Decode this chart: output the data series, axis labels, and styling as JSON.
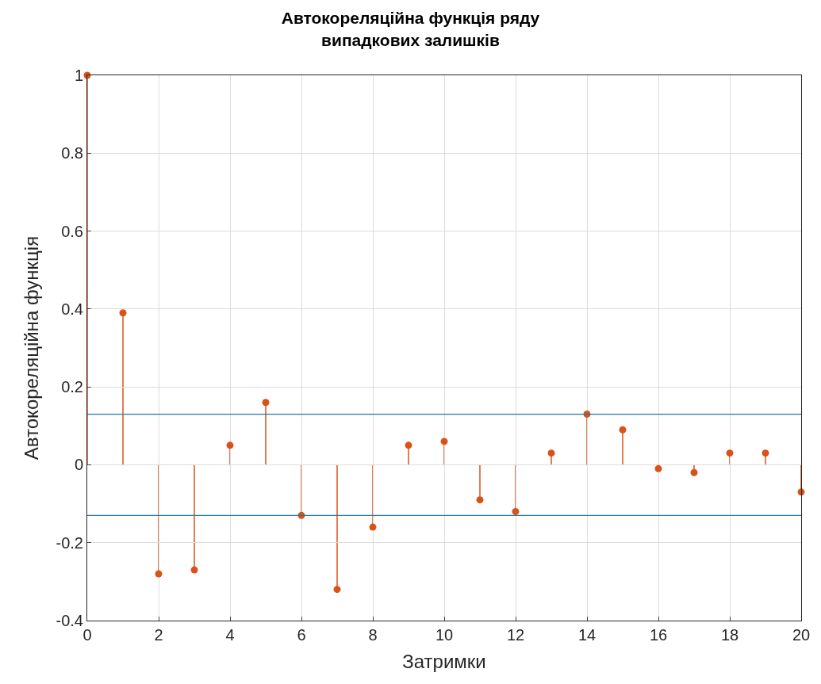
{
  "chart_data": {
    "type": "lollipop",
    "title": "Автокореляційна функція ряду\nвипадкових залишків",
    "xlabel": "Затримки",
    "ylabel": "Автокореляційна функція",
    "x": [
      0,
      1,
      2,
      3,
      4,
      5,
      6,
      7,
      8,
      9,
      10,
      11,
      12,
      13,
      14,
      15,
      16,
      17,
      18,
      19,
      20
    ],
    "series": [
      {
        "color": "#d95319",
        "values": [
          1,
          0.39,
          -0.28,
          -0.27,
          0.05,
          0.16,
          -0.13,
          -0.32,
          -0.16,
          0.05,
          0.06,
          -0.09,
          -0.12,
          0.03,
          0.13,
          0.09,
          -0.01,
          -0.02,
          0.03,
          0.03,
          -0.07
        ]
      }
    ],
    "xlim": [
      0,
      20
    ],
    "xticks": [
      0,
      2,
      4,
      6,
      8,
      10,
      12,
      14,
      16,
      18,
      20
    ],
    "ylim": [
      -0.4,
      1
    ],
    "yticks": [
      -0.4,
      -0.2,
      0,
      0.2,
      0.4,
      0.6,
      0.8,
      1
    ],
    "ref_lines": [
      {
        "axis": "y",
        "value": 0.13,
        "color": "#1f77a4"
      },
      {
        "axis": "y",
        "value": -0.13,
        "color": "#1f77a4"
      }
    ],
    "grid": true,
    "marker": "circle",
    "legend": false
  }
}
